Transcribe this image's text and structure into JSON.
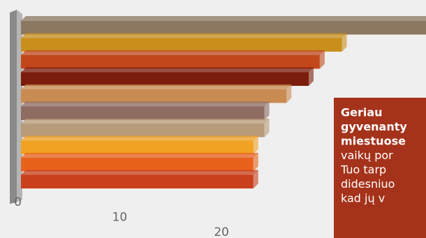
{
  "chart_data": {
    "type": "bar",
    "orientation": "horizontal",
    "categories": [
      null,
      null,
      null,
      null,
      null,
      null,
      null,
      null,
      null,
      null
    ],
    "values": [
      37,
      29,
      27,
      26,
      24,
      22,
      22,
      21,
      21,
      21
    ],
    "colors": [
      "#8c7760",
      "#c88f1c",
      "#c2481c",
      "#7c1c0c",
      "#c98b52",
      "#8e6c62",
      "#b89c7a",
      "#f0a222",
      "#e8621c",
      "#c8401c"
    ],
    "xlim": [
      0,
      36.6
    ],
    "xticks": [
      0,
      10,
      20
    ],
    "annotation": {
      "bold_lines": [
        "Geriau",
        "gyvenanty",
        "miestuose"
      ],
      "lines": [
        "vaikų por",
        "Tuo tarp",
        "didesniuo",
        "kad jų v"
      ]
    }
  }
}
